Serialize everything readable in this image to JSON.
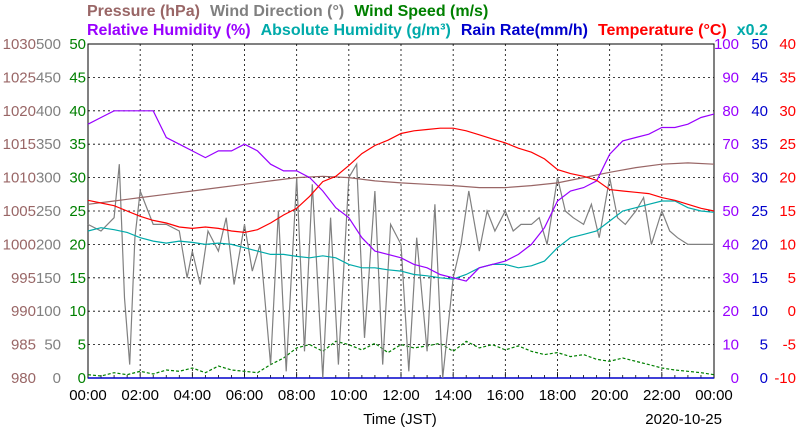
{
  "chart_data": {
    "type": "line",
    "legend": {
      "row1": [
        {
          "name": "Pressure (hPa)",
          "color": "#996666"
        },
        {
          "name": "Wind Direction (°)",
          "color": "#808080"
        },
        {
          "name": "Wind Speed (m/s)",
          "color": "#008000"
        }
      ],
      "row2": [
        {
          "name": "Relative Humidity (%)",
          "color": "#9900ff"
        },
        {
          "name": "Absolute Humidity (g/m³)",
          "color": "#00aaaa"
        },
        {
          "name": "Rain Rate(mm/h)",
          "color": "#0000cc"
        },
        {
          "name": "Temperature (°C)",
          "color": "#ff0000"
        },
        {
          "name": "x0.2",
          "color": "#00aaaa"
        }
      ]
    },
    "xlabel": "Time (JST)",
    "date": "2020-10-25",
    "x_ticks": [
      "00:00",
      "02:00",
      "04:00",
      "06:00",
      "08:00",
      "10:00",
      "12:00",
      "14:00",
      "16:00",
      "18:00",
      "20:00",
      "22:00",
      "00:00"
    ],
    "axes": {
      "pressure": {
        "ticks": [
          "1030",
          "1025",
          "1020",
          "1015",
          "1010",
          "1005",
          "1000",
          "995",
          "990",
          "985",
          "980"
        ],
        "range": [
          980,
          1030
        ],
        "color": "#996666"
      },
      "wind_direction": {
        "ticks": [
          "500",
          "450",
          "400",
          "350",
          "300",
          "250",
          "200",
          "150",
          "100",
          "50",
          "0"
        ],
        "range": [
          0,
          500
        ],
        "color": "#808080"
      },
      "wind_speed": {
        "ticks": [
          "50",
          "45",
          "40",
          "35",
          "30",
          "25",
          "20",
          "15",
          "10",
          "5",
          "0"
        ],
        "range": [
          0,
          50
        ],
        "color": "#008000"
      },
      "humidity": {
        "ticks": [
          "100",
          "90",
          "80",
          "70",
          "60",
          "50",
          "40",
          "30",
          "20",
          "10",
          "0"
        ],
        "range": [
          0,
          100
        ],
        "color": "#9900ff"
      },
      "rain_rate": {
        "ticks": [
          "50",
          "45",
          "40",
          "35",
          "30",
          "25",
          "20",
          "15",
          "10",
          "5",
          "0"
        ],
        "range": [
          0,
          50
        ],
        "color": "#0000cc"
      },
      "temperature": {
        "ticks": [
          "40",
          "35",
          "30",
          "25",
          "20",
          "15",
          "10",
          "5",
          "0",
          "-5",
          "-10"
        ],
        "range": [
          -10,
          40
        ],
        "color": "#ff0000"
      }
    },
    "grid": true,
    "series": [
      {
        "name": "Relative Humidity (%)",
        "axis": "humidity",
        "color": "#9900ff",
        "x": [
          0,
          0.5,
          1,
          1.5,
          2,
          2.5,
          3,
          3.5,
          4,
          4.5,
          5,
          5.5,
          6,
          6.5,
          7,
          7.5,
          8,
          8.5,
          9,
          9.5,
          10,
          10.5,
          11,
          11.5,
          12,
          12.5,
          13,
          13.5,
          14,
          14.5,
          15,
          15.5,
          16,
          16.5,
          17,
          17.5,
          18,
          18.5,
          19,
          19.5,
          20,
          20.5,
          21,
          21.5,
          22,
          22.5,
          23,
          23.5,
          24
        ],
        "y": [
          76,
          78,
          80,
          80,
          80,
          80,
          72,
          70,
          68,
          66,
          68,
          68,
          70,
          68,
          64,
          62,
          62,
          60,
          56,
          51,
          48,
          42,
          38,
          37,
          36,
          34,
          33,
          31,
          30,
          29,
          33,
          34,
          35,
          37,
          40,
          45,
          53,
          56,
          57,
          59,
          67,
          71,
          72,
          73,
          75,
          75,
          76,
          78,
          79
        ]
      },
      {
        "name": "Temperature (°C)",
        "axis": "temperature",
        "color": "#ff0000",
        "x": [
          0,
          0.5,
          1,
          1.5,
          2,
          2.5,
          3,
          3.5,
          4,
          4.5,
          5,
          5.5,
          6,
          6.5,
          7,
          7.5,
          8,
          8.5,
          9,
          9.5,
          10,
          10.5,
          11,
          11.5,
          12,
          12.5,
          13,
          13.5,
          14,
          14.5,
          15,
          15.5,
          16,
          16.5,
          17,
          17.5,
          18,
          18.5,
          19,
          19.5,
          20,
          20.5,
          21,
          21.5,
          22,
          22.5,
          23,
          23.5,
          24
        ],
        "y": [
          16.6,
          16.2,
          15.8,
          15.0,
          14.2,
          13.6,
          13.2,
          12.6,
          12.4,
          12.6,
          12.4,
          12.0,
          11.8,
          12.2,
          13.2,
          14.4,
          15.4,
          17.2,
          19.4,
          20.2,
          21.8,
          23.6,
          24.8,
          25.6,
          26.6,
          27.0,
          27.2,
          27.4,
          27.4,
          27.0,
          26.4,
          25.8,
          25.2,
          24.4,
          23.8,
          22.8,
          21.2,
          20.6,
          20.2,
          19.6,
          18.2,
          18.0,
          17.8,
          17.6,
          17.0,
          16.6,
          16.0,
          15.4,
          15.0
        ]
      },
      {
        "name": "Pressure (hPa)",
        "axis": "pressure",
        "color": "#996666",
        "x": [
          0,
          1,
          2,
          3,
          4,
          5,
          6,
          7,
          8,
          9,
          10,
          11,
          12,
          13,
          14,
          15,
          16,
          17,
          18,
          19,
          20,
          21,
          22,
          23,
          24
        ],
        "y": [
          1006.0,
          1006.5,
          1007.0,
          1007.5,
          1008.0,
          1008.5,
          1009.0,
          1009.5,
          1010.0,
          1010.2,
          1010.0,
          1009.5,
          1009.2,
          1009.0,
          1008.8,
          1008.5,
          1008.5,
          1008.8,
          1009.2,
          1010.0,
          1010.8,
          1011.5,
          1012.0,
          1012.2,
          1012.0
        ]
      },
      {
        "name": "Absolute Humidity (g/m³)",
        "axis": "wind_speed",
        "color": "#00aaaa",
        "x": [
          0,
          0.5,
          1,
          1.5,
          2,
          2.5,
          3,
          3.5,
          4,
          4.5,
          5,
          5.5,
          6,
          6.5,
          7,
          7.5,
          8,
          8.5,
          9,
          9.5,
          10,
          10.5,
          11,
          11.5,
          12,
          12.5,
          13,
          13.5,
          14,
          14.5,
          15,
          15.5,
          16,
          16.5,
          17,
          17.5,
          18,
          18.5,
          19,
          19.5,
          20,
          20.5,
          21,
          21.5,
          22,
          22.5,
          23,
          23.5,
          24
        ],
        "y": [
          22.0,
          22.5,
          22.2,
          21.8,
          21.0,
          20.5,
          20.2,
          20.5,
          20.3,
          20.0,
          20.2,
          20.0,
          19.5,
          19.0,
          18.5,
          18.5,
          18.2,
          18.0,
          18.3,
          18.0,
          17.0,
          16.5,
          16.5,
          16.2,
          16.0,
          15.5,
          15.3,
          15.0,
          14.8,
          15.5,
          16.5,
          17.0,
          17.0,
          16.5,
          16.8,
          17.5,
          19.5,
          21.0,
          21.5,
          22.0,
          23.5,
          25.0,
          25.5,
          26.0,
          26.5,
          26.5,
          25.5,
          25.0,
          24.8
        ]
      },
      {
        "name": "Wind Direction (°)",
        "axis": "wind_direction",
        "color": "#808080",
        "x": [
          0,
          0.5,
          1,
          1.2,
          1.4,
          1.6,
          1.8,
          2,
          2.5,
          3,
          3.5,
          3.8,
          4,
          4.3,
          4.6,
          5,
          5.3,
          5.6,
          6,
          6.3,
          6.6,
          7,
          7.3,
          7.6,
          8,
          8.3,
          8.6,
          9,
          9.3,
          9.6,
          10,
          10.3,
          10.6,
          11,
          11.3,
          11.6,
          12,
          12.3,
          12.6,
          13,
          13.3,
          13.6,
          14,
          14.3,
          14.6,
          15,
          15.3,
          15.6,
          16,
          16.3,
          16.6,
          17,
          17.3,
          17.6,
          18,
          18.3,
          18.6,
          19,
          19.3,
          19.6,
          20,
          20.3,
          20.6,
          21,
          21.3,
          21.6,
          22,
          22.3,
          22.6,
          23,
          23.5,
          24
        ],
        "y": [
          230,
          220,
          240,
          320,
          120,
          20,
          210,
          280,
          230,
          230,
          220,
          150,
          190,
          140,
          220,
          190,
          240,
          140,
          230,
          160,
          200,
          20,
          250,
          10,
          300,
          40,
          290,
          0,
          240,
          20,
          300,
          320,
          60,
          280,
          20,
          230,
          200,
          10,
          210,
          40,
          260,
          0,
          150,
          200,
          280,
          190,
          250,
          220,
          250,
          220,
          230,
          230,
          240,
          200,
          300,
          250,
          240,
          230,
          260,
          210,
          300,
          240,
          230,
          250,
          270,
          200,
          250,
          220,
          210,
          200,
          200,
          200
        ]
      },
      {
        "name": "Wind Speed (m/s)",
        "axis": "wind_speed",
        "color": "#008000",
        "x": [
          0,
          0.5,
          1,
          1.5,
          2,
          2.5,
          3,
          3.5,
          4,
          4.5,
          5,
          5.5,
          6,
          6.5,
          7,
          7.5,
          8,
          8.5,
          9,
          9.5,
          10,
          10.5,
          11,
          11.5,
          12,
          12.5,
          13,
          13.5,
          14,
          14.5,
          15,
          15.5,
          16,
          16.5,
          17,
          17.5,
          18,
          18.5,
          19,
          19.5,
          20,
          20.5,
          21,
          21.5,
          22,
          22.5,
          23,
          23.5,
          24
        ],
        "y": [
          0.5,
          0.3,
          0.8,
          0.5,
          1.0,
          0.6,
          1.2,
          1.0,
          1.5,
          0.8,
          1.8,
          1.2,
          1.0,
          0.8,
          2.0,
          3.0,
          4.5,
          5.0,
          4.0,
          5.5,
          5.0,
          4.2,
          5.2,
          3.8,
          5.0,
          4.5,
          4.8,
          5.2,
          4.0,
          5.5,
          4.5,
          5.0,
          4.2,
          4.8,
          4.0,
          3.5,
          3.8,
          3.2,
          3.5,
          2.8,
          2.5,
          3.0,
          2.5,
          2.0,
          1.5,
          1.2,
          1.0,
          0.8,
          0.5
        ]
      },
      {
        "name": "Rain Rate(mm/h)",
        "axis": "rain_rate",
        "color": "#0000cc",
        "x": [
          0,
          24
        ],
        "y": [
          0,
          0
        ]
      }
    ]
  }
}
